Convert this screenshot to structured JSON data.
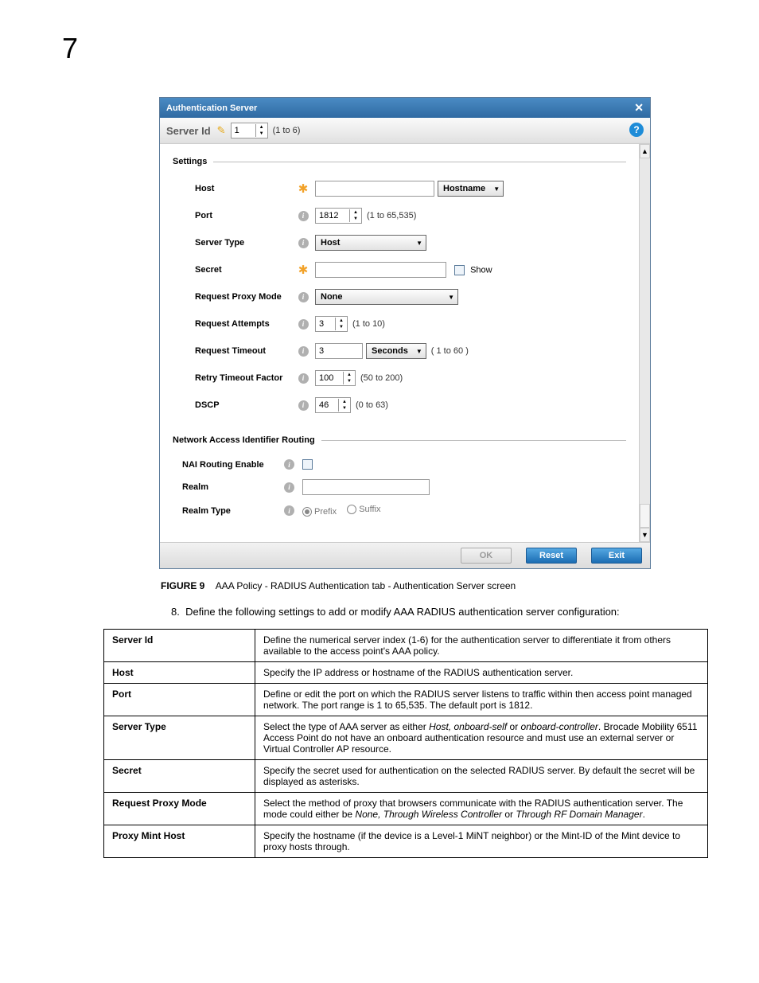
{
  "chapter": "7",
  "dialog": {
    "title": "Authentication Server",
    "serverId": {
      "label": "Server Id",
      "value": "1",
      "range": "(1 to 6)"
    },
    "sections": {
      "settings": "Settings",
      "nai": "Network Access Identifier Routing"
    },
    "fields": {
      "host": {
        "label": "Host",
        "ddLabel": "Hostname"
      },
      "port": {
        "label": "Port",
        "value": "1812",
        "range": "(1 to 65,535)"
      },
      "type": {
        "label": "Server Type",
        "ddLabel": "Host"
      },
      "secret": {
        "label": "Secret",
        "showLabel": "Show"
      },
      "proxy": {
        "label": "Request Proxy Mode",
        "ddLabel": "None"
      },
      "attempts": {
        "label": "Request Attempts",
        "value": "3",
        "range": "(1 to 10)"
      },
      "timeout": {
        "label": "Request Timeout",
        "value": "3",
        "unit": "Seconds",
        "range": "( 1 to 60 )"
      },
      "retry": {
        "label": "Retry Timeout Factor",
        "value": "100",
        "range": "(50 to 200)"
      },
      "dscp": {
        "label": "DSCP",
        "value": "46",
        "range": "(0 to 63)"
      },
      "naiEnable": {
        "label": "NAI Routing Enable"
      },
      "realm": {
        "label": "Realm"
      },
      "realmType": {
        "label": "Realm Type",
        "opt1": "Prefix",
        "opt2": "Suffix"
      }
    },
    "buttons": {
      "ok": "OK",
      "reset": "Reset",
      "exit": "Exit"
    }
  },
  "figure": {
    "num": "FIGURE 9",
    "caption": "AAA Policy - RADIUS Authentication tab - Authentication Server screen"
  },
  "step": {
    "num": "8.",
    "text": "Define the following settings to add or modify AAA RADIUS authentication server configuration:"
  },
  "table": {
    "rows": [
      {
        "k": "Server Id",
        "v": "Define the numerical server index (1-6) for the authentication server to differentiate it from others available to the access point's AAA policy."
      },
      {
        "k": "Host",
        "v": "Specify the IP address or hostname of the RADIUS authentication server."
      },
      {
        "k": "Port",
        "v": "Define or edit the port on which the RADIUS server listens to traffic within then access point managed network. The port range is 1 to 65,535. The default port is 1812."
      },
      {
        "k": "Server Type",
        "v": "Select the type of AAA server as either <i>Host, onboard-self</i> or <i>onboard-controller</i>. Brocade Mobility 6511 Access Point do not have an onboard authentication resource and must use an external server or Virtual Controller AP resource."
      },
      {
        "k": "Secret",
        "v": "Specify the secret used for authentication on the selected RADIUS server. By default the secret will be displayed as asterisks."
      },
      {
        "k": "Request Proxy Mode",
        "v": "Select the method of proxy that browsers communicate with the RADIUS authentication server. The mode could either be <i>None, Through Wireless Controller</i> or <i>Through RF Domain Manager</i>."
      },
      {
        "k": "Proxy Mint Host",
        "v": "Specify the hostname (if the device is a Level-1 MiNT neighbor) or the Mint-ID of the Mint device to proxy hosts through."
      }
    ]
  }
}
